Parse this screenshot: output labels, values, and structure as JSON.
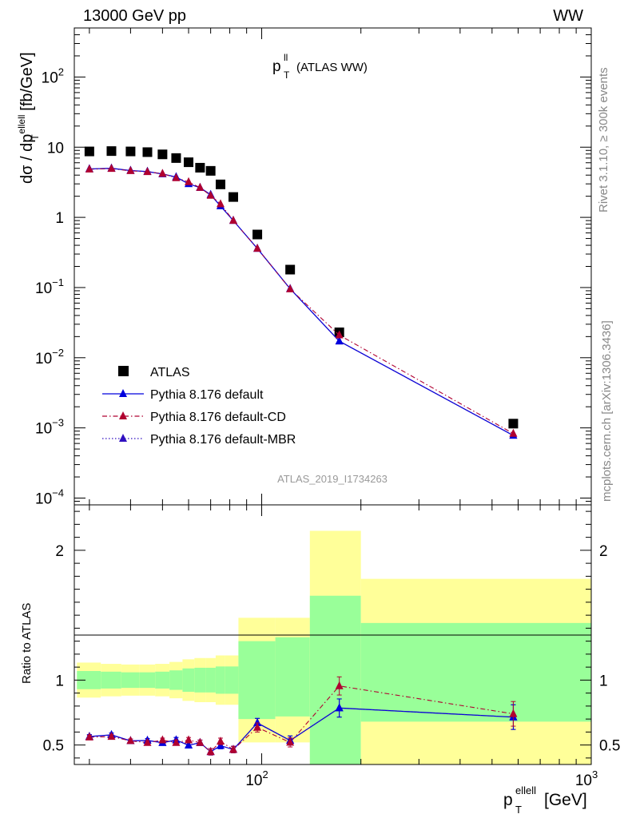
{
  "header": {
    "left": "13000 GeV pp",
    "right": "WW"
  },
  "side_texts": {
    "upper": "Rivet 3.1.10, ≥ 300k events",
    "lower": "mcplots.cern.ch [arXiv:1306.3436]"
  },
  "watermark": "ATLAS_2019_I1734263",
  "legend": [
    {
      "label": "ATLAS",
      "color": "#000000",
      "style": "square"
    },
    {
      "label": "Pythia 8.176 default",
      "color": "#0000dd",
      "style": "solid"
    },
    {
      "label": "Pythia 8.176 default-CD",
      "color": "#b00030",
      "style": "dashdot"
    },
    {
      "label": "Pythia 8.176 default-MBR",
      "color": "#3010c0",
      "style": "dotted"
    }
  ],
  "chart_data": [
    {
      "type": "scatter",
      "title": "p_T^ll (ATLAS WW)",
      "title_main": "p",
      "title_sup": "ll",
      "title_sub": "T",
      "title_suffix": "(ATLAS WW)",
      "xlabel": "p_T^ellell [GeV]",
      "ylabel": "dσ / dp_T^ellell [fb/GeV]",
      "xscale": "log",
      "yscale": "log",
      "xlim": [
        27,
        1000
      ],
      "ylim": [
        8e-05,
        500
      ],
      "yticks": [
        {
          "v": 0.0001,
          "b": "10",
          "e": "−4"
        },
        {
          "v": 0.001,
          "b": "10",
          "e": "−3"
        },
        {
          "v": 0.01,
          "b": "10",
          "e": "−2"
        },
        {
          "v": 0.1,
          "b": "10",
          "e": "−1"
        },
        {
          "v": 1,
          "b": "1",
          "e": ""
        },
        {
          "v": 10,
          "b": "10",
          "e": ""
        },
        {
          "v": 100,
          "b": "10",
          "e": "2"
        }
      ],
      "series": [
        {
          "name": "ATLAS",
          "x": [
            30,
            35,
            40,
            45,
            50,
            55,
            60,
            65,
            70,
            75,
            82,
            97,
            122,
            172,
            580
          ],
          "y": [
            8.7,
            8.8,
            8.7,
            8.5,
            7.9,
            7.0,
            6.1,
            5.1,
            4.6,
            2.95,
            1.95,
            0.57,
            0.18,
            0.023,
            0.00115
          ]
        },
        {
          "name": "Pythia 8.176 default",
          "x": [
            30,
            35,
            40,
            45,
            50,
            55,
            60,
            65,
            70,
            75,
            82,
            97,
            122,
            172,
            580
          ],
          "y": [
            4.9,
            5.0,
            4.65,
            4.5,
            4.15,
            3.75,
            3.0,
            2.65,
            2.1,
            1.45,
            0.9,
            0.36,
            0.096,
            0.0172,
            0.00078
          ]
        },
        {
          "name": "Pythia 8.176 default-CD",
          "x": [
            30,
            35,
            40,
            45,
            50,
            55,
            60,
            65,
            70,
            75,
            82,
            97,
            122,
            172,
            580
          ],
          "y": [
            4.85,
            4.95,
            4.6,
            4.45,
            4.2,
            3.65,
            3.2,
            2.65,
            2.05,
            1.55,
            0.9,
            0.36,
            0.095,
            0.021,
            0.00083
          ]
        },
        {
          "name": "Pythia 8.176 default-MBR",
          "x": [
            30,
            35,
            40,
            45,
            50,
            55,
            60,
            65,
            70,
            75,
            82,
            97,
            122,
            172,
            580
          ],
          "y": [
            4.9,
            5.0,
            4.65,
            4.5,
            4.15,
            3.75,
            3.0,
            2.65,
            2.1,
            1.45,
            0.9,
            0.36,
            0.096,
            0.0172,
            0.00078
          ]
        }
      ]
    },
    {
      "type": "scatter",
      "ylabel": "Ratio to ATLAS",
      "xlabel": "p_T^ellell [GeV]",
      "xlabel_main": "p",
      "xlabel_sup": "ellell",
      "xlabel_sub": "T",
      "xlabel_suffix": "[GeV]",
      "xscale": "log",
      "xlim": [
        27,
        1000
      ],
      "ylim": [
        0.35,
        2.35
      ],
      "yticks": [
        0.5,
        1,
        2
      ],
      "xtick_labels": [
        {
          "v": 100,
          "b": "10",
          "e": "2"
        },
        {
          "v": 1000,
          "b": "10",
          "e": "3"
        }
      ],
      "bands": [
        {
          "x0": 27.5,
          "x1": 32.5,
          "outer": [
            0.865,
            1.135
          ],
          "inner": [
            0.93,
            1.07
          ]
        },
        {
          "x0": 32.5,
          "x1": 37.5,
          "outer": [
            0.875,
            1.125
          ],
          "inner": [
            0.935,
            1.065
          ]
        },
        {
          "x0": 37.5,
          "x1": 42.5,
          "outer": [
            0.88,
            1.12
          ],
          "inner": [
            0.94,
            1.06
          ]
        },
        {
          "x0": 42.5,
          "x1": 47.5,
          "outer": [
            0.88,
            1.12
          ],
          "inner": [
            0.94,
            1.06
          ]
        },
        {
          "x0": 47.5,
          "x1": 52.5,
          "outer": [
            0.875,
            1.125
          ],
          "inner": [
            0.935,
            1.065
          ]
        },
        {
          "x0": 52.5,
          "x1": 57.5,
          "outer": [
            0.86,
            1.14
          ],
          "inner": [
            0.925,
            1.075
          ]
        },
        {
          "x0": 57.5,
          "x1": 62.5,
          "outer": [
            0.84,
            1.16
          ],
          "inner": [
            0.91,
            1.09
          ]
        },
        {
          "x0": 62.5,
          "x1": 67.5,
          "outer": [
            0.83,
            1.17
          ],
          "inner": [
            0.905,
            1.095
          ]
        },
        {
          "x0": 67.5,
          "x1": 72.5,
          "outer": [
            0.83,
            1.17
          ],
          "inner": [
            0.905,
            1.095
          ]
        },
        {
          "x0": 72.5,
          "x1": 77.5,
          "outer": [
            0.81,
            1.19
          ],
          "inner": [
            0.895,
            1.105
          ]
        },
        {
          "x0": 77.5,
          "x1": 85,
          "outer": [
            0.81,
            1.19
          ],
          "inner": [
            0.895,
            1.105
          ]
        },
        {
          "x0": 85,
          "x1": 110,
          "outer": [
            0.52,
            1.48
          ],
          "inner": [
            0.7,
            1.3
          ]
        },
        {
          "x0": 110,
          "x1": 140,
          "outer": [
            0.52,
            1.48
          ],
          "inner": [
            0.72,
            1.33
          ]
        },
        {
          "x0": 140,
          "x1": 200,
          "outer": [
            0.0,
            2.15
          ],
          "inner": [
            0.0,
            1.65
          ]
        },
        {
          "x0": 200,
          "x1": 1000,
          "outer": [
            0.0,
            1.78
          ],
          "inner": [
            0.68,
            1.44
          ]
        }
      ],
      "series": [
        {
          "name": "Pythia 8.176 default",
          "x": [
            30,
            35,
            40,
            45,
            50,
            55,
            60,
            65,
            70,
            75,
            82,
            97,
            122,
            172,
            580
          ],
          "y": [
            0.565,
            0.578,
            0.532,
            0.535,
            0.518,
            0.538,
            0.498,
            0.518,
            0.448,
            0.495,
            0.465,
            0.67,
            0.535,
            0.785,
            0.715
          ],
          "err": [
            0.015,
            0.015,
            0.015,
            0.015,
            0.015,
            0.02,
            0.02,
            0.02,
            0.025,
            0.025,
            0.025,
            0.035,
            0.035,
            0.07,
            0.095
          ]
        },
        {
          "name": "Pythia 8.176 default-CD",
          "x": [
            30,
            35,
            40,
            45,
            50,
            55,
            60,
            65,
            70,
            75,
            82,
            97,
            122,
            172,
            580
          ],
          "y": [
            0.56,
            0.565,
            0.532,
            0.518,
            0.538,
            0.518,
            0.538,
            0.518,
            0.448,
            0.528,
            0.465,
            0.635,
            0.52,
            0.955,
            0.74
          ],
          "err": [
            0.015,
            0.015,
            0.015,
            0.015,
            0.015,
            0.02,
            0.02,
            0.02,
            0.025,
            0.025,
            0.025,
            0.035,
            0.035,
            0.07,
            0.095
          ]
        },
        {
          "name": "Pythia 8.176 default-MBR",
          "x": [
            30,
            35,
            40,
            45,
            50,
            55,
            60,
            65,
            70,
            75,
            82,
            97,
            122,
            172,
            580
          ],
          "y": [
            0.565,
            0.578,
            0.532,
            0.535,
            0.518,
            0.538,
            0.498,
            0.518,
            0.448,
            0.495,
            0.465,
            0.67,
            0.535,
            0.785,
            0.715
          ],
          "err": [
            0.015,
            0.015,
            0.015,
            0.015,
            0.015,
            0.02,
            0.02,
            0.02,
            0.025,
            0.025,
            0.025,
            0.035,
            0.035,
            0.07,
            0.095
          ]
        }
      ]
    }
  ]
}
